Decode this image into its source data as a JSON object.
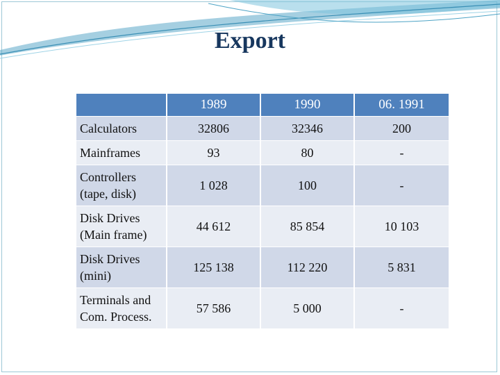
{
  "slide": {
    "title": "Export"
  },
  "table": {
    "columns": [
      "",
      "1989",
      "1990",
      "06. 1991"
    ],
    "rows": [
      {
        "label_lines": [
          "Calculators"
        ],
        "v1989": "32806",
        "v1990": "32346",
        "v1991": "200"
      },
      {
        "label_lines": [
          "Mainframes"
        ],
        "v1989": "93",
        "v1990": "80",
        "v1991": "-"
      },
      {
        "label_lines": [
          "Controllers",
          "(tape, disk)"
        ],
        "v1989": "1 028",
        "v1990": "100",
        "v1991": "-"
      },
      {
        "label_lines": [
          "Disk Drives",
          "(Main frame)"
        ],
        "v1989": "44 612",
        "v1990": "85 854",
        "v1991": "10 103"
      },
      {
        "label_lines": [
          "Disk Drives",
          "(mini)"
        ],
        "v1989": "125 138",
        "v1990": "112 220",
        "v1991": "5 831"
      },
      {
        "label_lines": [
          "Terminals and",
          "Com. Process."
        ],
        "v1989": "57 586",
        "v1990": "5 000",
        "v1991": "-"
      }
    ]
  },
  "colors": {
    "header": "#4f81bd",
    "row_dark": "#d0d8e8",
    "row_light": "#e9edf4",
    "title": "#17375e"
  }
}
